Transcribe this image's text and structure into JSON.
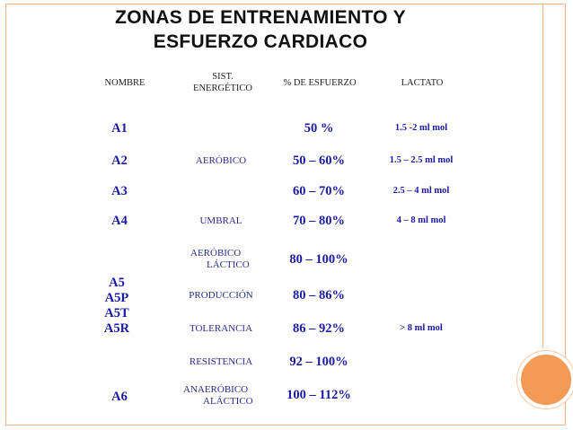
{
  "title_line1": "ZONAS DE ENTRENAMIENTO Y",
  "title_line2": "ESFUERZO CARDIACO",
  "headers": {
    "nombre": "NOMBRE",
    "sist_line1": "SIST.",
    "sist_line2": "ENERGÉTICO",
    "esfuerzo": "% DE ESFUERZO",
    "lactato": "LACTATO"
  },
  "rows": [
    {
      "zone": "A1",
      "sys1": "",
      "sys2": "",
      "pct": "50 %",
      "lac": "1.5 -2 ml mol"
    },
    {
      "zone": "A2",
      "sys1": "AERÓBICO",
      "sys2": "",
      "pct": "50 – 60%",
      "lac": "1.5 – 2.5 ml mol"
    },
    {
      "zone": "A3",
      "sys1": "",
      "sys2": "",
      "pct": "60 – 70%",
      "lac": "2.5 – 4 ml mol"
    },
    {
      "zone": "A4",
      "sys1": "UMBRAL",
      "sys2": "",
      "pct": "70 – 80%",
      "lac": "4 – 8 ml mol"
    },
    {
      "zone": "",
      "sys1": "AERÓBICO",
      "sys2": "LÁCTICO",
      "pct": "80 – 100%",
      "lac": ""
    },
    {
      "zone": "",
      "sys1": "PRODUCCIÓN",
      "sys2": "",
      "pct": "80 – 86%",
      "lac": ""
    },
    {
      "zone": "",
      "sys1": "TOLERANCIA",
      "sys2": "",
      "pct": "86 – 92%",
      "lac": "> 8 ml mol"
    },
    {
      "zone": "",
      "sys1": "RESISTENCIA",
      "sys2": "",
      "pct": "92 – 100%",
      "lac": ""
    },
    {
      "zone": "A6",
      "sys1": "ANAERÓBICO",
      "sys2": "ALÁCTICO",
      "pct": "100 – 112%",
      "lac": ""
    }
  ],
  "group_zones": [
    "A5",
    "A5P",
    "A5T",
    "A5R"
  ]
}
